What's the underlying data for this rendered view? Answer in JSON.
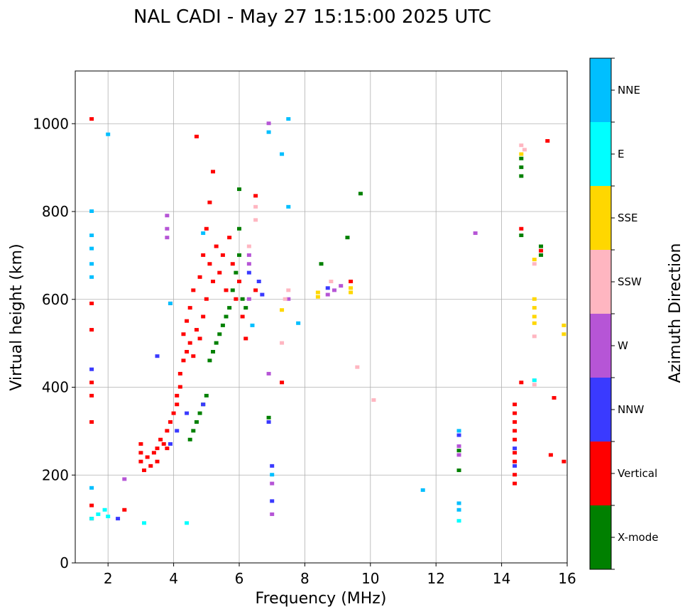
{
  "chart_data": {
    "type": "scatter",
    "title": "NAL CADI - May 27 15:15:00 2025 UTC",
    "xlabel": "Frequency (MHz)",
    "ylabel": "Virtual height (km)",
    "xlim": [
      1,
      16
    ],
    "ylim": [
      0,
      1120
    ],
    "xticks": [
      2,
      4,
      6,
      8,
      10,
      12,
      14,
      16
    ],
    "yticks": [
      0,
      200,
      400,
      600,
      800,
      1000
    ],
    "grid": true,
    "colorbar": {
      "title": "Azimuth Direction",
      "categories": [
        {
          "name": "X-mode",
          "color": "#008000"
        },
        {
          "name": "Vertical",
          "color": "#ff0000"
        },
        {
          "name": "NNW",
          "color": "#3a3aff"
        },
        {
          "name": "W",
          "color": "#b655d6"
        },
        {
          "name": "SSW",
          "color": "#ffb6c1"
        },
        {
          "name": "SSE",
          "color": "#ffd700"
        },
        {
          "name": "E",
          "color": "#00ffff"
        },
        {
          "name": "NNE",
          "color": "#00bfff"
        }
      ]
    },
    "series": [
      {
        "name": "Vertical",
        "points": [
          [
            1.5,
            1010
          ],
          [
            1.5,
            590
          ],
          [
            1.5,
            530
          ],
          [
            1.5,
            410
          ],
          [
            1.5,
            380
          ],
          [
            1.5,
            320
          ],
          [
            1.5,
            130
          ],
          [
            1.5,
            100
          ],
          [
            2.5,
            120
          ],
          [
            3.0,
            270
          ],
          [
            3.0,
            250
          ],
          [
            3.0,
            230
          ],
          [
            3.1,
            210
          ],
          [
            3.2,
            240
          ],
          [
            3.3,
            220
          ],
          [
            3.4,
            250
          ],
          [
            3.5,
            230
          ],
          [
            3.5,
            260
          ],
          [
            3.6,
            280
          ],
          [
            3.7,
            270
          ],
          [
            3.8,
            300
          ],
          [
            3.8,
            260
          ],
          [
            3.9,
            590
          ],
          [
            3.9,
            320
          ],
          [
            4.0,
            340
          ],
          [
            4.1,
            360
          ],
          [
            4.1,
            380
          ],
          [
            4.2,
            400
          ],
          [
            4.2,
            430
          ],
          [
            4.3,
            460
          ],
          [
            4.3,
            520
          ],
          [
            4.4,
            480
          ],
          [
            4.4,
            550
          ],
          [
            4.5,
            500
          ],
          [
            4.5,
            580
          ],
          [
            4.6,
            470
          ],
          [
            4.6,
            620
          ],
          [
            4.7,
            530
          ],
          [
            4.7,
            970
          ],
          [
            4.8,
            510
          ],
          [
            4.8,
            650
          ],
          [
            4.9,
            560
          ],
          [
            4.9,
            700
          ],
          [
            5.0,
            600
          ],
          [
            5.0,
            760
          ],
          [
            5.1,
            680
          ],
          [
            5.1,
            820
          ],
          [
            5.2,
            640
          ],
          [
            5.2,
            890
          ],
          [
            5.3,
            720
          ],
          [
            5.4,
            660
          ],
          [
            5.5,
            700
          ],
          [
            5.6,
            620
          ],
          [
            5.7,
            740
          ],
          [
            5.8,
            680
          ],
          [
            5.9,
            600
          ],
          [
            6.0,
            640
          ],
          [
            6.1,
            560
          ],
          [
            6.2,
            510
          ],
          [
            6.5,
            835
          ],
          [
            6.5,
            620
          ],
          [
            7.3,
            410
          ],
          [
            9.4,
            640
          ],
          [
            14.4,
            360
          ],
          [
            14.4,
            340
          ],
          [
            14.4,
            320
          ],
          [
            14.4,
            300
          ],
          [
            14.4,
            280
          ],
          [
            14.4,
            250
          ],
          [
            14.4,
            230
          ],
          [
            14.4,
            200
          ],
          [
            14.4,
            180
          ],
          [
            14.6,
            760
          ],
          [
            15.2,
            710
          ],
          [
            15.4,
            960
          ],
          [
            15.6,
            375
          ],
          [
            15.5,
            245
          ],
          [
            15.9,
            230
          ],
          [
            14.6,
            410
          ]
        ]
      },
      {
        "name": "X-mode",
        "points": [
          [
            4.5,
            280
          ],
          [
            4.6,
            300
          ],
          [
            4.7,
            320
          ],
          [
            4.8,
            340
          ],
          [
            4.9,
            360
          ],
          [
            5.0,
            380
          ],
          [
            5.1,
            460
          ],
          [
            5.2,
            480
          ],
          [
            5.3,
            500
          ],
          [
            5.4,
            520
          ],
          [
            5.5,
            540
          ],
          [
            5.6,
            560
          ],
          [
            5.7,
            580
          ],
          [
            5.8,
            620
          ],
          [
            5.9,
            660
          ],
          [
            6.0,
            700
          ],
          [
            6.0,
            760
          ],
          [
            6.1,
            600
          ],
          [
            6.2,
            580
          ],
          [
            6.0,
            850
          ],
          [
            8.5,
            680
          ],
          [
            9.7,
            840
          ],
          [
            9.3,
            740
          ],
          [
            12.7,
            210
          ],
          [
            12.7,
            255
          ],
          [
            14.6,
            900
          ],
          [
            14.6,
            920
          ],
          [
            14.6,
            880
          ],
          [
            14.6,
            745
          ],
          [
            15.2,
            720
          ],
          [
            15.2,
            700
          ],
          [
            6.9,
            330
          ]
        ]
      },
      {
        "name": "NNW",
        "points": [
          [
            2.3,
            100
          ],
          [
            3.5,
            470
          ],
          [
            3.9,
            270
          ],
          [
            4.1,
            300
          ],
          [
            4.4,
            340
          ],
          [
            4.9,
            360
          ],
          [
            6.3,
            660
          ],
          [
            6.6,
            640
          ],
          [
            6.7,
            610
          ],
          [
            7.0,
            220
          ],
          [
            7.0,
            140
          ],
          [
            6.9,
            320
          ],
          [
            8.7,
            625
          ],
          [
            12.7,
            290
          ],
          [
            14.4,
            260
          ],
          [
            14.4,
            220
          ],
          [
            1.5,
            440
          ]
        ]
      },
      {
        "name": "W",
        "points": [
          [
            3.8,
            790
          ],
          [
            3.8,
            760
          ],
          [
            3.8,
            740
          ],
          [
            6.3,
            700
          ],
          [
            6.3,
            680
          ],
          [
            6.3,
            600
          ],
          [
            6.9,
            1000
          ],
          [
            6.9,
            430
          ],
          [
            7.0,
            180
          ],
          [
            7.0,
            110
          ],
          [
            7.5,
            600
          ],
          [
            8.7,
            610
          ],
          [
            8.9,
            620
          ],
          [
            9.1,
            630
          ],
          [
            12.7,
            265
          ],
          [
            12.7,
            245
          ],
          [
            13.2,
            750
          ],
          [
            2.5,
            190
          ]
        ]
      },
      {
        "name": "SSW",
        "points": [
          [
            6.5,
            780
          ],
          [
            6.5,
            810
          ],
          [
            6.3,
            720
          ],
          [
            7.3,
            500
          ],
          [
            7.5,
            620
          ],
          [
            8.8,
            640
          ],
          [
            9.6,
            445
          ],
          [
            10.1,
            370
          ],
          [
            14.6,
            950
          ],
          [
            14.7,
            940
          ],
          [
            15.0,
            515
          ],
          [
            15.0,
            415
          ],
          [
            15.0,
            405
          ],
          [
            15.0,
            680
          ],
          [
            7.4,
            600
          ]
        ]
      },
      {
        "name": "SSE",
        "points": [
          [
            8.4,
            615
          ],
          [
            8.4,
            605
          ],
          [
            9.4,
            625
          ],
          [
            9.4,
            615
          ],
          [
            15.0,
            600
          ],
          [
            15.0,
            580
          ],
          [
            15.0,
            560
          ],
          [
            15.0,
            545
          ],
          [
            15.0,
            690
          ],
          [
            15.9,
            540
          ],
          [
            15.9,
            520
          ],
          [
            7.3,
            575
          ],
          [
            14.6,
            930
          ]
        ]
      },
      {
        "name": "E",
        "points": [
          [
            1.5,
            100
          ],
          [
            1.7,
            110
          ],
          [
            1.9,
            120
          ],
          [
            2.0,
            105
          ],
          [
            3.1,
            90
          ],
          [
            4.4,
            90
          ],
          [
            12.7,
            95
          ],
          [
            15.0,
            415
          ]
        ]
      },
      {
        "name": "NNE",
        "points": [
          [
            1.5,
            800
          ],
          [
            1.5,
            745
          ],
          [
            1.5,
            715
          ],
          [
            1.5,
            680
          ],
          [
            1.5,
            650
          ],
          [
            1.5,
            170
          ],
          [
            3.9,
            590
          ],
          [
            4.9,
            750
          ],
          [
            6.4,
            540
          ],
          [
            6.9,
            980
          ],
          [
            7.3,
            930
          ],
          [
            7.5,
            1010
          ],
          [
            7.5,
            810
          ],
          [
            7.8,
            545
          ],
          [
            11.6,
            165
          ],
          [
            12.7,
            135
          ],
          [
            12.7,
            120
          ],
          [
            12.7,
            300
          ],
          [
            2.0,
            975
          ],
          [
            7.0,
            200
          ]
        ]
      }
    ]
  }
}
